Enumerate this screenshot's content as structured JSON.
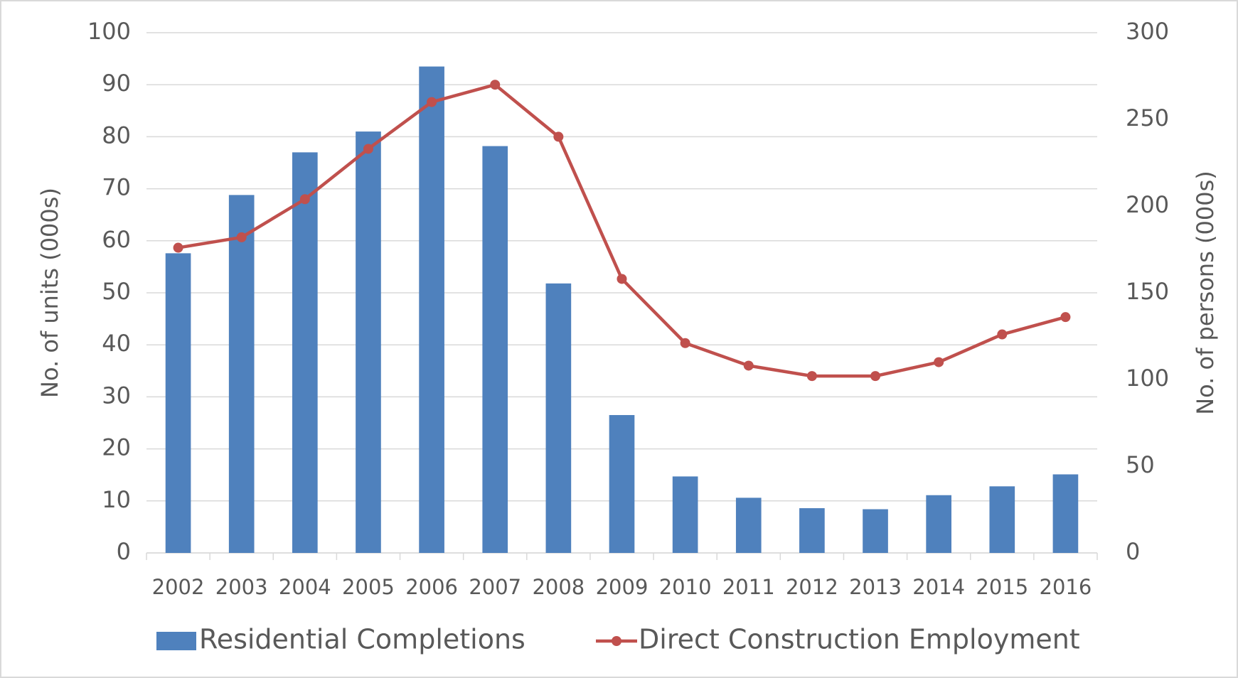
{
  "chart_data": {
    "type": "bar",
    "ylabel": "No. of units (000s)",
    "y2label": "No. of persons (000s)",
    "categories": [
      "2002",
      "2003",
      "2004",
      "2005",
      "2006",
      "2007",
      "2008",
      "2009",
      "2010",
      "2011",
      "2012",
      "2013",
      "2014",
      "2015",
      "2016"
    ],
    "series": [
      {
        "name": "Residential Completions",
        "type": "bar",
        "color": "#4f81bd",
        "values": [
          57.6,
          68.8,
          77,
          81,
          93.5,
          78.2,
          51.8,
          26.5,
          14.7,
          10.6,
          8.6,
          8.4,
          11.1,
          12.8,
          15.1
        ]
      },
      {
        "name": "Direct Construction Employment",
        "type": "line",
        "color": "#c0504d",
        "axis": "y2",
        "values": [
          176,
          182,
          204,
          233,
          260,
          270,
          240,
          158,
          121,
          108,
          102,
          102,
          110,
          126,
          136
        ]
      }
    ],
    "ylim": [
      0,
      100
    ],
    "yticks": [
      0,
      10,
      20,
      30,
      40,
      50,
      60,
      70,
      80,
      90,
      100
    ],
    "y2lim": [
      0,
      300
    ],
    "y2ticks": [
      0,
      50,
      100,
      150,
      200,
      250,
      300
    ],
    "grid": true,
    "legend": "bottom"
  }
}
